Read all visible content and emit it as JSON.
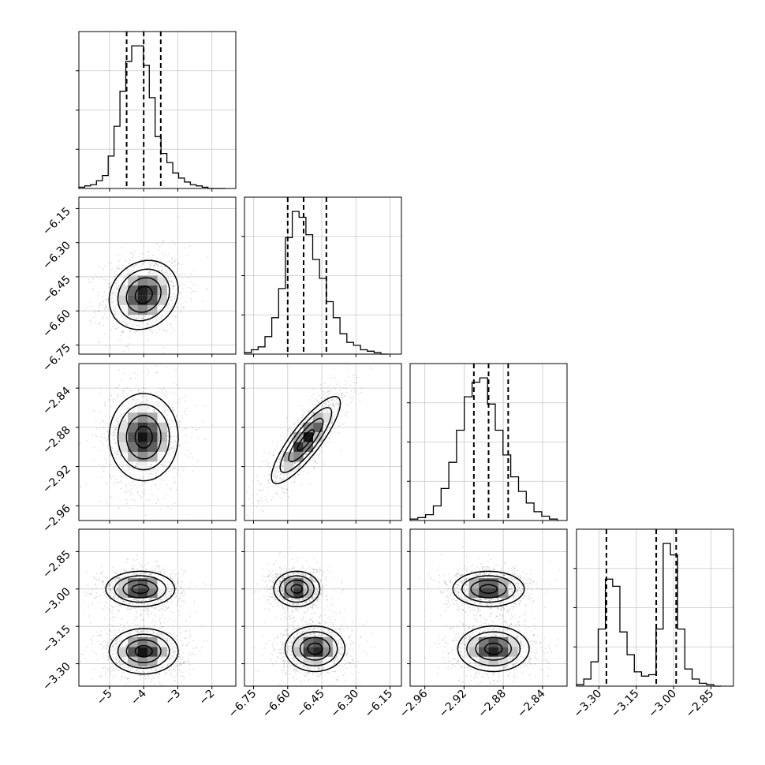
{
  "chart_data": {
    "type": "corner",
    "n_params": 4,
    "grid": true,
    "axes": [
      {
        "range": [
          -5.9,
          -1.3
        ],
        "ticks": [
          "-5",
          "-4",
          "-3",
          "-2"
        ],
        "tick_values": [
          -5,
          -4,
          -3,
          -2
        ],
        "quantiles": [
          -4.5,
          -4.0,
          -3.5
        ]
      },
      {
        "range": [
          -6.79,
          -6.1
        ],
        "ticks": [
          "-6.75",
          "-6.60",
          "-6.45",
          "-6.30",
          "-6.15"
        ],
        "tick_values": [
          -6.75,
          -6.6,
          -6.45,
          -6.3,
          -6.15
        ],
        "quantiles": [
          -6.6,
          -6.53,
          -6.43
        ]
      },
      {
        "range": [
          -2.975,
          -2.815
        ],
        "ticks": [
          "-2.96",
          "-2.92",
          "-2.88",
          "-2.84"
        ],
        "tick_values": [
          -2.96,
          -2.92,
          -2.88,
          -2.84
        ],
        "quantiles": [
          -2.91,
          -2.895,
          -2.875
        ]
      },
      {
        "range": [
          -3.39,
          -2.76
        ],
        "ticks": [
          "-3.30",
          "-3.15",
          "-3.00",
          "-2.85"
        ],
        "tick_values": [
          -3.3,
          -3.15,
          -3.0,
          -2.85
        ],
        "quantiles": [
          -3.27,
          -3.07,
          -2.99
        ]
      }
    ],
    "histograms": [
      {
        "param": 0,
        "edges": [
          -5.9,
          -1.6
        ],
        "counts": [
          1,
          2,
          3,
          6,
          10,
          25,
          48,
          75,
          98,
          110,
          110,
          95,
          70,
          40,
          27,
          20,
          12,
          8,
          5,
          3,
          2,
          1,
          0,
          0,
          0
        ]
      },
      {
        "param": 1,
        "edges": [
          -6.79,
          -6.16
        ],
        "counts": [
          1,
          3,
          5,
          12,
          25,
          45,
          80,
          98,
          94,
          82,
          65,
          52,
          36,
          25,
          14,
          8,
          6,
          3,
          2,
          1,
          0
        ]
      },
      {
        "param": 2,
        "edges": [
          -2.975,
          -2.825
        ],
        "counts": [
          1,
          2,
          4,
          10,
          22,
          40,
          62,
          85,
          95,
          98,
          80,
          62,
          45,
          30,
          20,
          12,
          6,
          3,
          1
        ]
      },
      {
        "param": 3,
        "edges": [
          -3.39,
          -2.81
        ],
        "counts": [
          1,
          5,
          17,
          40,
          75,
          70,
          38,
          22,
          10,
          7,
          8,
          40,
          100,
          92,
          40,
          12,
          5,
          2,
          1,
          0
        ]
      }
    ],
    "joint_2d": [
      {
        "x": 0,
        "y": 1,
        "modes": [
          {
            "mx": -4.0,
            "my": -6.53,
            "sx": 0.5,
            "sy": 0.075,
            "rho": 0.15,
            "w": 1
          }
        ]
      },
      {
        "x": 0,
        "y": 2,
        "modes": [
          {
            "mx": -4.0,
            "my": -2.89,
            "sx": 0.5,
            "sy": 0.022,
            "rho": 0.0,
            "w": 1
          }
        ]
      },
      {
        "x": 1,
        "y": 2,
        "modes": [
          {
            "mx": -6.52,
            "my": -2.893,
            "sx": 0.075,
            "sy": 0.022,
            "rho": 0.85,
            "w": 1
          }
        ]
      },
      {
        "x": 0,
        "y": 3,
        "modes": [
          {
            "mx": -4.1,
            "my": -3.0,
            "sx": 0.5,
            "sy": 0.035,
            "rho": 0.0,
            "w": 1
          },
          {
            "mx": -4.0,
            "my": -3.25,
            "sx": 0.5,
            "sy": 0.045,
            "rho": 0.0,
            "w": 1
          }
        ]
      },
      {
        "x": 1,
        "y": 3,
        "modes": [
          {
            "mx": -6.56,
            "my": -3.0,
            "sx": 0.05,
            "sy": 0.035,
            "rho": 0.0,
            "w": 1
          },
          {
            "mx": -6.48,
            "my": -3.24,
            "sx": 0.065,
            "sy": 0.045,
            "rho": 0.0,
            "w": 1
          }
        ]
      },
      {
        "x": 2,
        "y": 3,
        "modes": [
          {
            "mx": -2.895,
            "my": -3.0,
            "sx": 0.018,
            "sy": 0.035,
            "rho": 0.0,
            "w": 1
          },
          {
            "mx": -2.89,
            "my": -3.24,
            "sx": 0.018,
            "sy": 0.045,
            "rho": 0.0,
            "w": 1
          }
        ]
      }
    ]
  }
}
